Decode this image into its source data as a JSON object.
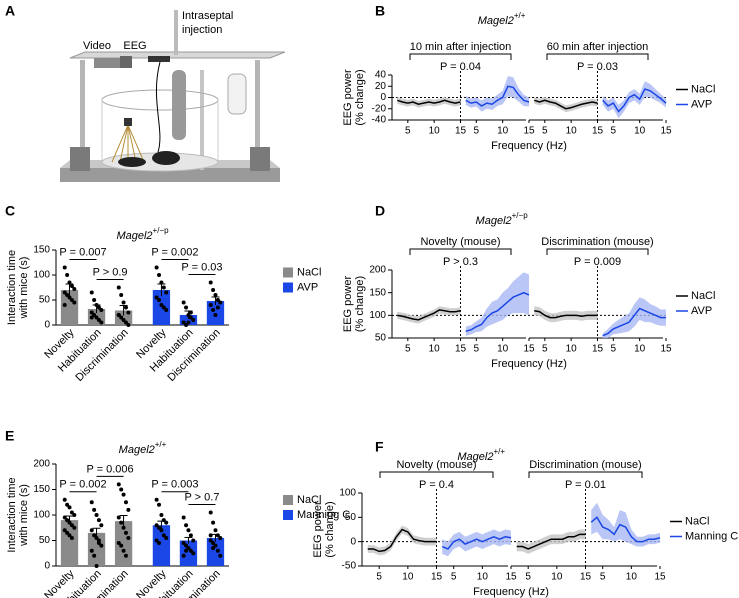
{
  "panel_a": {
    "letter": "A",
    "video": "Video",
    "eeg": "EEG",
    "injection": [
      "Intraseptal",
      "injection"
    ]
  },
  "chart_data": [
    {
      "type": "line",
      "panel": "B",
      "title": "Magel2",
      "title_superscript": "+/+",
      "ylabel": [
        "EEG power",
        "(% change)"
      ],
      "xlabel": "Frequency (Hz)",
      "x": [
        3,
        4,
        5,
        6,
        7,
        8,
        9,
        10,
        11,
        12,
        13,
        14,
        15
      ],
      "xlim": [
        2,
        15
      ],
      "xticks": [
        5,
        10,
        15
      ],
      "ylim": [
        -40,
        40
      ],
      "yticks": [
        -40,
        -20,
        0,
        20,
        40
      ],
      "reference_line": 0,
      "blocks": [
        {
          "label": "10 min after injection",
          "p_label": "P = 0.04"
        },
        {
          "label": "60 min after injection",
          "p_label": "P = 0.03"
        }
      ],
      "series": [
        {
          "name": "NaCl",
          "color": "#000000",
          "band_color": "#c4c4c4",
          "values": [
            [
              -5,
              -8,
              -10,
              -8,
              -12,
              -10,
              -8,
              -10,
              -8,
              -5,
              -8,
              -10,
              -8
            ],
            [
              -5,
              -8,
              -5,
              -8,
              -10,
              -15,
              -20,
              -18,
              -15,
              -12,
              -10,
              -8,
              -10
            ]
          ],
          "errors": [
            [
              6,
              6,
              6,
              6,
              6,
              6,
              6,
              6,
              6,
              6,
              6,
              6,
              6
            ],
            [
              6,
              6,
              6,
              6,
              6,
              6,
              6,
              6,
              6,
              6,
              6,
              6,
              6
            ]
          ]
        },
        {
          "name": "AVP",
          "color": "#1a47e6",
          "band_color": "#a9b8f3",
          "values": [
            [
              -5,
              -10,
              -8,
              -15,
              -10,
              -12,
              -5,
              0,
              20,
              18,
              5,
              -5,
              -8
            ],
            [
              -5,
              -15,
              -10,
              -25,
              -15,
              0,
              5,
              -3,
              15,
              12,
              5,
              -2,
              -10
            ]
          ],
          "errors": [
            [
              8,
              8,
              8,
              10,
              10,
              10,
              10,
              12,
              18,
              18,
              12,
              10,
              8
            ],
            [
              8,
              10,
              10,
              12,
              10,
              10,
              10,
              10,
              14,
              12,
              10,
              8,
              8
            ]
          ]
        }
      ]
    },
    {
      "type": "bar",
      "panel": "C",
      "title": "Magel2",
      "title_superscript": "+/−p",
      "ylabel": [
        "Interaction time",
        "with mice (s)"
      ],
      "categories": [
        "Novelty",
        "Habituation",
        "Discrimination",
        "Novelty",
        "Habituation",
        "Discrimination"
      ],
      "ylim": [
        0,
        150
      ],
      "yticks": [
        0,
        50,
        100,
        150
      ],
      "series": [
        {
          "name": "NaCl",
          "color": "#8a8a8a",
          "values": [
            70,
            32,
            29,
            null,
            null,
            null
          ],
          "errors": [
            12,
            8,
            10,
            null,
            null,
            null
          ],
          "points": [
            [
              115,
              100,
              85,
              78,
              72,
              65,
              60,
              55,
              50,
              45,
              40
            ],
            [
              65,
              50,
              40,
              35,
              30,
              25,
              20,
              15,
              10,
              5,
              15
            ],
            [
              75,
              60,
              45,
              35,
              25,
              20,
              15,
              10,
              5,
              0,
              20
            ],
            null,
            null,
            null
          ]
        },
        {
          "name": "AVP",
          "color": "#1a47e6",
          "values": [
            null,
            null,
            null,
            70,
            20,
            48
          ],
          "errors": [
            null,
            null,
            null,
            12,
            8,
            8
          ],
          "points": [
            null,
            null,
            null,
            [
              115,
              100,
              85,
              75,
              65,
              55,
              50,
              40,
              35,
              30
            ],
            [
              45,
              35,
              20,
              15,
              10,
              5,
              0,
              5,
              25
            ],
            [
              85,
              70,
              60,
              50,
              45,
              40,
              30,
              20,
              35
            ]
          ]
        }
      ],
      "comparisons": [
        {
          "from": 0,
          "to": 1,
          "label": "P = 0.007"
        },
        {
          "from": 1,
          "to": 2,
          "label": "P > 0.9"
        },
        {
          "from": 3,
          "to": 4,
          "label": "P = 0.002"
        },
        {
          "from": 4,
          "to": 5,
          "label": "P = 0.03"
        }
      ]
    },
    {
      "type": "line",
      "panel": "D",
      "title": "Magel2",
      "title_superscript": "+/−p",
      "ylabel": [
        "EEG power",
        "(% change)"
      ],
      "xlabel": "Frequency (Hz)",
      "x": [
        3,
        4,
        5,
        6,
        7,
        8,
        9,
        10,
        11,
        12,
        13,
        14,
        15
      ],
      "xlim": [
        2,
        15
      ],
      "xticks": [
        5,
        10,
        15
      ],
      "ylim": [
        50,
        200
      ],
      "yticks": [
        50,
        100,
        150,
        200
      ],
      "reference_line": 100,
      "blocks": [
        {
          "label": "Novelty (mouse)",
          "p_label": "P > 0.3"
        },
        {
          "label": "Discrimination (mouse)",
          "p_label": "P = 0.009"
        }
      ],
      "series": [
        {
          "name": "NaCl",
          "color": "#000000",
          "band_color": "#c4c4c4",
          "values": [
            [
              100,
              98,
              95,
              92,
              90,
              95,
              100,
              105,
              112,
              110,
              108,
              108,
              110
            ],
            [
              110,
              108,
              100,
              95,
              95,
              98,
              100,
              100,
              100,
              98,
              100,
              100,
              100
            ]
          ],
          "errors": [
            [
              8,
              8,
              8,
              8,
              8,
              8,
              8,
              8,
              8,
              8,
              8,
              8,
              8
            ],
            [
              10,
              10,
              10,
              10,
              10,
              10,
              10,
              10,
              10,
              10,
              10,
              10,
              10
            ]
          ]
        },
        {
          "name": "AVP",
          "color": "#1a47e6",
          "band_color": "#a9b8f3",
          "values": [
            [
              65,
              68,
              75,
              80,
              95,
              105,
              110,
              120,
              130,
              140,
              145,
              150,
              145
            ],
            [
              55,
              60,
              70,
              75,
              80,
              85,
              100,
              115,
              110,
              105,
              100,
              95,
              95
            ]
          ],
          "errors": [
            [
              10,
              10,
              12,
              15,
              20,
              25,
              25,
              30,
              30,
              35,
              40,
              45,
              45
            ],
            [
              5,
              10,
              12,
              15,
              18,
              20,
              25,
              25,
              25,
              20,
              20,
              18,
              18
            ]
          ]
        }
      ]
    },
    {
      "type": "bar",
      "panel": "E",
      "title": "Magel2",
      "title_superscript": "+/+",
      "ylabel": [
        "Interaction time",
        "with mice (s)"
      ],
      "categories": [
        "Novelty",
        "Habituation",
        "Discrimination",
        "Novelty",
        "Habituation",
        "Discrimination"
      ],
      "ylim": [
        0,
        200
      ],
      "yticks": [
        0,
        50,
        100,
        150,
        200
      ],
      "series": [
        {
          "name": "NaCl",
          "color": "#8a8a8a",
          "values": [
            90,
            65,
            88,
            null,
            null,
            null
          ],
          "errors": [
            8,
            9,
            11,
            null,
            null,
            null
          ],
          "points": [
            [
              130,
              120,
              115,
              105,
              100,
              95,
              90,
              85,
              80,
              75,
              70,
              65,
              60,
              55
            ],
            [
              125,
              110,
              100,
              90,
              80,
              70,
              60,
              55,
              50,
              40,
              30,
              20,
              0,
              45
            ],
            [
              160,
              150,
              140,
              125,
              110,
              95,
              85,
              75,
              65,
              55,
              45,
              40,
              30,
              20
            ],
            null,
            null,
            null
          ]
        },
        {
          "name": "Manning C",
          "color": "#1a47e6",
          "values": [
            null,
            null,
            null,
            80,
            50,
            55
          ],
          "errors": [
            null,
            null,
            null,
            8,
            6,
            7
          ],
          "points": [
            null,
            null,
            null,
            [
              130,
              120,
              100,
              90,
              85,
              80,
              75,
              70,
              60,
              55,
              50,
              45
            ],
            [
              95,
              80,
              70,
              60,
              50,
              45,
              40,
              35,
              30,
              25,
              20,
              30
            ],
            [
              105,
              85,
              70,
              60,
              55,
              50,
              45,
              40,
              30,
              20,
              60,
              35
            ]
          ]
        }
      ],
      "comparisons": [
        {
          "from": 0,
          "to": 1,
          "label": "P = 0.002"
        },
        {
          "from": 1,
          "to": 2,
          "label": "P = 0.006"
        },
        {
          "from": 3,
          "to": 4,
          "label": "P = 0.003"
        },
        {
          "from": 4,
          "to": 5,
          "label": "P > 0.7"
        }
      ]
    },
    {
      "type": "line",
      "panel": "F",
      "title": "Magel2",
      "title_superscript": "+/+",
      "ylabel": [
        "EEG power",
        "(% change)"
      ],
      "xlabel": "Frequency (Hz)",
      "x": [
        3,
        4,
        5,
        6,
        7,
        8,
        9,
        10,
        11,
        12,
        13,
        14,
        15
      ],
      "xlim": [
        2,
        15
      ],
      "xticks": [
        5,
        10,
        15
      ],
      "ylim": [
        -50,
        100
      ],
      "yticks": [
        -50,
        0,
        50,
        100
      ],
      "reference_line": 0,
      "blocks": [
        {
          "label": "Novelty (mouse)",
          "p_label": "P = 0.4"
        },
        {
          "label": "Discrimination (mouse)",
          "p_label": "P = 0.01"
        }
      ],
      "series": [
        {
          "name": "NaCl",
          "color": "#000000",
          "band_color": "#c4c4c4",
          "values": [
            [
              -15,
              -15,
              -20,
              -18,
              -10,
              10,
              25,
              20,
              5,
              2,
              0,
              0,
              0
            ],
            [
              -10,
              -10,
              -15,
              -10,
              -5,
              0,
              5,
              5,
              5,
              10,
              10,
              15,
              15
            ]
          ],
          "errors": [
            [
              8,
              8,
              8,
              8,
              8,
              8,
              8,
              8,
              8,
              8,
              8,
              8,
              8
            ],
            [
              10,
              10,
              10,
              10,
              10,
              10,
              10,
              10,
              10,
              10,
              10,
              10,
              10
            ]
          ]
        },
        {
          "name": "Manning C",
          "color": "#1a47e6",
          "band_color": "#a9b8f3",
          "values": [
            [
              -10,
              -15,
              0,
              5,
              -5,
              0,
              5,
              0,
              5,
              10,
              5,
              10,
              8
            ],
            [
              40,
              50,
              30,
              25,
              15,
              35,
              30,
              10,
              0,
              0,
              5,
              5,
              8
            ]
          ],
          "errors": [
            [
              15,
              15,
              15,
              15,
              15,
              15,
              15,
              15,
              15,
              15,
              15,
              15,
              15
            ],
            [
              25,
              30,
              25,
              20,
              15,
              30,
              30,
              15,
              10,
              10,
              10,
              10,
              10
            ]
          ]
        }
      ]
    }
  ]
}
